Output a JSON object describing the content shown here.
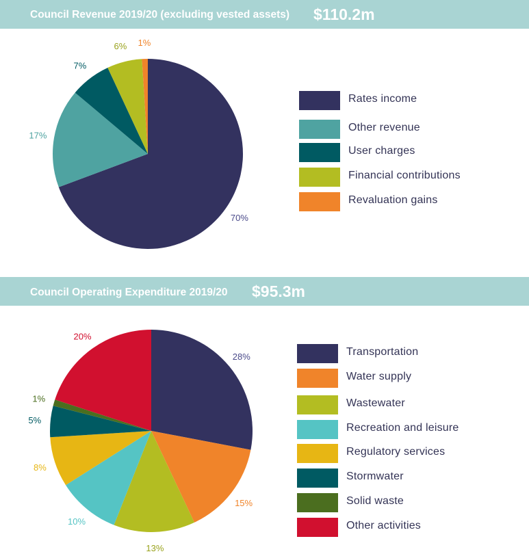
{
  "chart_data": [
    {
      "type": "pie",
      "title": "Council Revenue 2019/20 (excluding vested assets)",
      "total": "$110.2m",
      "categories": [
        "Rates income",
        "Other revenue",
        "User charges",
        "Financial contributions",
        "Revaluation gains"
      ],
      "values": [
        70,
        17,
        7,
        6,
        1
      ],
      "labels": [
        "70%",
        "17%",
        "7%",
        "6%",
        "1%"
      ],
      "colors": [
        "#33325f",
        "#4fa3a1",
        "#005a62",
        "#b3bd22",
        "#f0842a"
      ],
      "label_colors": [
        "#4a4a8a",
        "#4fa3a1",
        "#005a62",
        "#9aa31e",
        "#f0842a"
      ],
      "legend_position": "right"
    },
    {
      "type": "pie",
      "title": "Council Operating Expenditure 2019/20",
      "total": "$95.3m",
      "categories": [
        "Transportation",
        "Water supply",
        "Wastewater",
        "Recreation and leisure",
        "Regulatory services",
        "Stormwater",
        "Solid waste",
        "Other activities"
      ],
      "values": [
        28,
        15,
        13,
        10,
        8,
        5,
        1,
        20
      ],
      "labels": [
        "28%",
        "15%",
        "13%",
        "10%",
        "8%",
        "5%",
        "1%",
        "20%"
      ],
      "colors": [
        "#33325f",
        "#f0842a",
        "#b3bd22",
        "#55c4c4",
        "#e7b614",
        "#005a62",
        "#4b6e1f",
        "#d1102f"
      ],
      "label_colors": [
        "#4a4a8a",
        "#f0842a",
        "#9aa31e",
        "#55c4c4",
        "#e7b614",
        "#005a62",
        "#4b6e1f",
        "#d1102f"
      ],
      "legend_position": "right"
    }
  ]
}
